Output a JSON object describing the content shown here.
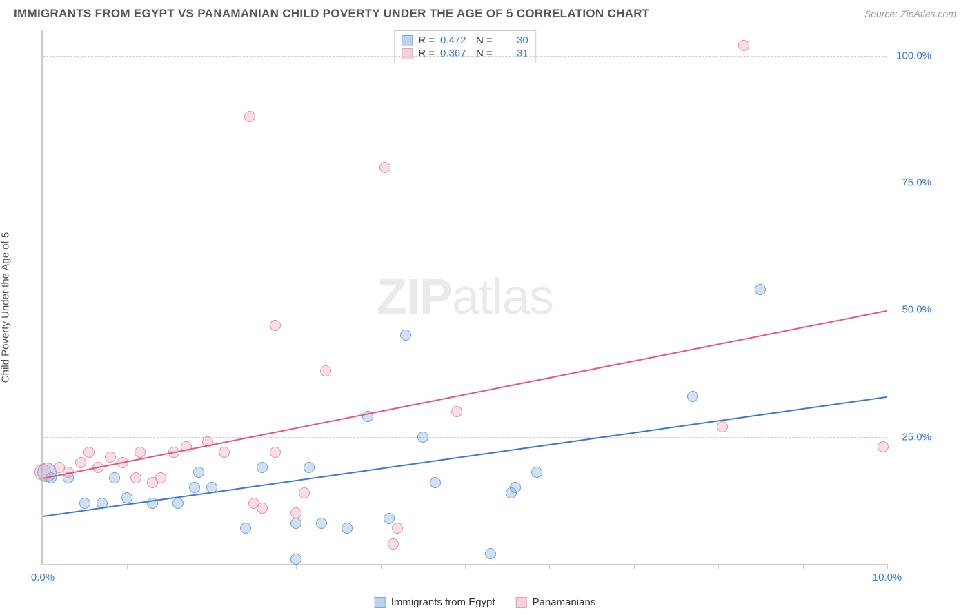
{
  "header": {
    "title": "IMMIGRANTS FROM EGYPT VS PANAMANIAN CHILD POVERTY UNDER THE AGE OF 5 CORRELATION CHART",
    "source": "Source: ZipAtlas.com"
  },
  "watermark": {
    "part1": "ZIP",
    "part2": "atlas"
  },
  "chart": {
    "type": "scatter",
    "y_axis_label": "Child Poverty Under the Age of 5",
    "xlim": [
      0,
      10
    ],
    "ylim": [
      0,
      105
    ],
    "x_tick_label_color": "#3a78d8",
    "y_tick_label_color": "#3a78d8",
    "y_ticks": [
      {
        "value": 25,
        "label": "25.0%"
      },
      {
        "value": 50,
        "label": "50.0%"
      },
      {
        "value": 75,
        "label": "75.0%"
      },
      {
        "value": 100,
        "label": "100.0%"
      }
    ],
    "x_ticks": [
      {
        "value": 0,
        "label": "0.0%"
      },
      {
        "value": 1,
        "label": ""
      },
      {
        "value": 2,
        "label": ""
      },
      {
        "value": 3,
        "label": ""
      },
      {
        "value": 4,
        "label": ""
      },
      {
        "value": 5,
        "label": ""
      },
      {
        "value": 6,
        "label": ""
      },
      {
        "value": 7,
        "label": ""
      },
      {
        "value": 8,
        "label": ""
      },
      {
        "value": 9,
        "label": ""
      },
      {
        "value": 10,
        "label": "10.0%"
      }
    ],
    "gridline_color": "#cccccc",
    "series": [
      {
        "key": "egypt",
        "label": "Immigrants from Egypt",
        "fill": "rgba(120,170,230,0.35)",
        "stroke": "#6d9fd6",
        "swatch_fill": "#bcd3f0",
        "swatch_stroke": "#7aa8dd",
        "marker_radius": 8,
        "r_value": "0.472",
        "n_value": "30",
        "trend": {
          "x1": 0,
          "y1": 9.5,
          "x2": 10,
          "y2": 33,
          "color": "#3a78d8"
        },
        "points": [
          {
            "x": 0.05,
            "y": 18,
            "r": 14
          },
          {
            "x": 0.1,
            "y": 17
          },
          {
            "x": 0.3,
            "y": 17
          },
          {
            "x": 0.5,
            "y": 12
          },
          {
            "x": 0.7,
            "y": 12
          },
          {
            "x": 0.85,
            "y": 17
          },
          {
            "x": 1.0,
            "y": 13
          },
          {
            "x": 1.3,
            "y": 12
          },
          {
            "x": 1.6,
            "y": 12
          },
          {
            "x": 1.8,
            "y": 15
          },
          {
            "x": 1.85,
            "y": 18
          },
          {
            "x": 2.0,
            "y": 15
          },
          {
            "x": 2.4,
            "y": 7
          },
          {
            "x": 2.6,
            "y": 19
          },
          {
            "x": 3.0,
            "y": 1
          },
          {
            "x": 3.0,
            "y": 8
          },
          {
            "x": 3.15,
            "y": 19
          },
          {
            "x": 3.3,
            "y": 8
          },
          {
            "x": 3.6,
            "y": 7
          },
          {
            "x": 3.85,
            "y": 29
          },
          {
            "x": 4.1,
            "y": 9
          },
          {
            "x": 4.3,
            "y": 45
          },
          {
            "x": 4.5,
            "y": 25
          },
          {
            "x": 4.65,
            "y": 16
          },
          {
            "x": 5.3,
            "y": 2
          },
          {
            "x": 5.55,
            "y": 14
          },
          {
            "x": 5.6,
            "y": 15
          },
          {
            "x": 5.85,
            "y": 18
          },
          {
            "x": 8.5,
            "y": 54
          },
          {
            "x": 7.7,
            "y": 33
          }
        ]
      },
      {
        "key": "panamanians",
        "label": "Panamanians",
        "fill": "rgba(240,160,180,0.35)",
        "stroke": "#e08fa5",
        "swatch_fill": "#f6cfd9",
        "swatch_stroke": "#e6a0b4",
        "marker_radius": 8,
        "r_value": "0.367",
        "n_value": "31",
        "trend": {
          "x1": 0,
          "y1": 17,
          "x2": 10,
          "y2": 50,
          "color": "#e6567e"
        },
        "points": [
          {
            "x": 0.0,
            "y": 18,
            "r": 12
          },
          {
            "x": 0.2,
            "y": 19
          },
          {
            "x": 0.3,
            "y": 18
          },
          {
            "x": 0.45,
            "y": 20
          },
          {
            "x": 0.55,
            "y": 22
          },
          {
            "x": 0.65,
            "y": 19
          },
          {
            "x": 0.8,
            "y": 21
          },
          {
            "x": 0.95,
            "y": 20
          },
          {
            "x": 1.1,
            "y": 17
          },
          {
            "x": 1.15,
            "y": 22
          },
          {
            "x": 1.3,
            "y": 16
          },
          {
            "x": 1.4,
            "y": 17
          },
          {
            "x": 1.55,
            "y": 22
          },
          {
            "x": 1.7,
            "y": 23
          },
          {
            "x": 1.95,
            "y": 24
          },
          {
            "x": 2.15,
            "y": 22
          },
          {
            "x": 2.45,
            "y": 88
          },
          {
            "x": 2.5,
            "y": 12
          },
          {
            "x": 2.6,
            "y": 11
          },
          {
            "x": 2.75,
            "y": 47
          },
          {
            "x": 2.75,
            "y": 22
          },
          {
            "x": 3.0,
            "y": 10
          },
          {
            "x": 3.1,
            "y": 14
          },
          {
            "x": 3.35,
            "y": 38
          },
          {
            "x": 4.05,
            "y": 78
          },
          {
            "x": 4.15,
            "y": 4
          },
          {
            "x": 4.2,
            "y": 7
          },
          {
            "x": 4.9,
            "y": 30
          },
          {
            "x": 8.3,
            "y": 102
          },
          {
            "x": 8.05,
            "y": 27
          },
          {
            "x": 9.95,
            "y": 23
          }
        ]
      }
    ],
    "stats_label_r": "R =",
    "stats_label_n": "N ="
  }
}
